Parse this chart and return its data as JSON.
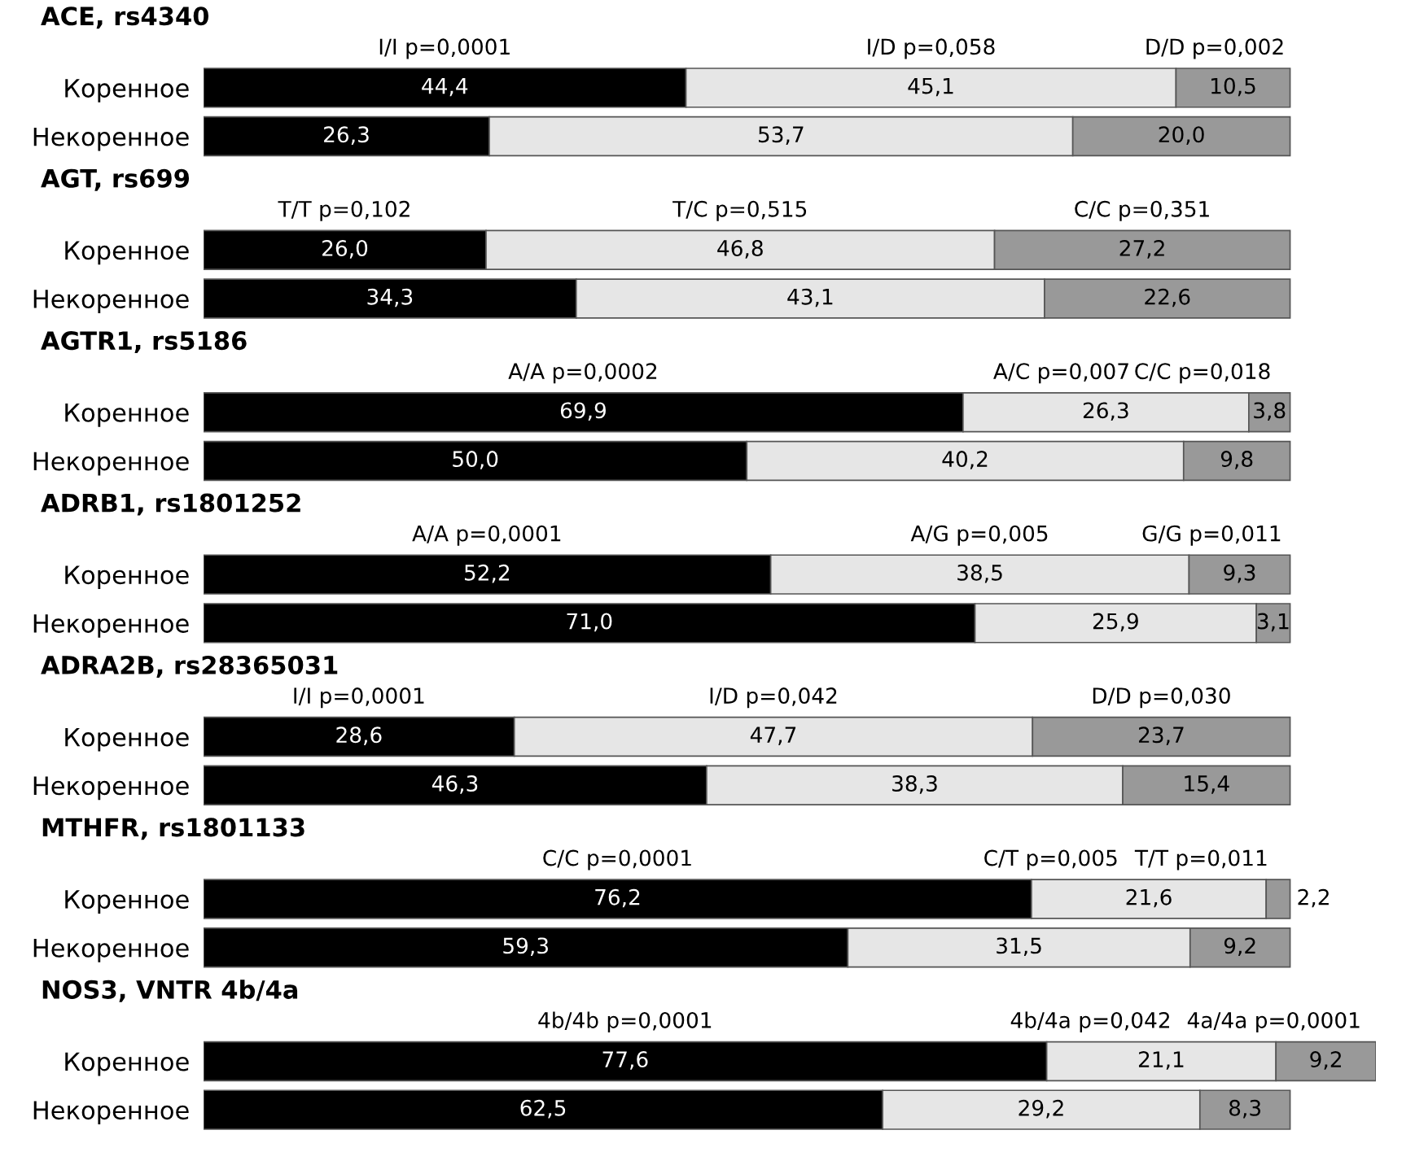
{
  "chart_data": [
    {
      "type": "bar",
      "orientation": "horizontal",
      "stacked": true,
      "title": "ACE, rs4340",
      "categories": [
        "Коренное",
        "Некоренное"
      ],
      "tick_labels": "y",
      "series": [
        {
          "name": "I/I p=0,0001",
          "color": "#000000",
          "values": [
            44.4,
            26.3
          ],
          "value_labels": [
            "44,4",
            "26,3"
          ]
        },
        {
          "name": "I/D p=0,058",
          "color": "#e6e6e6",
          "values": [
            45.1,
            53.7
          ],
          "value_labels": [
            "45,1",
            "53,7"
          ]
        },
        {
          "name": "D/D p=0,002",
          "color": "#999999",
          "values": [
            10.5,
            20.0
          ],
          "value_labels": [
            "10,5",
            "20,0"
          ]
        }
      ]
    },
    {
      "type": "bar",
      "orientation": "horizontal",
      "stacked": true,
      "title": "AGT, rs699",
      "categories": [
        "Коренное",
        "Некоренное"
      ],
      "tick_labels": "y",
      "series": [
        {
          "name": "T/T p=0,102",
          "color": "#000000",
          "values": [
            26.0,
            34.3
          ],
          "value_labels": [
            "26,0",
            "34,3"
          ]
        },
        {
          "name": "T/C p=0,515",
          "color": "#e6e6e6",
          "values": [
            46.8,
            43.1
          ],
          "value_labels": [
            "46,8",
            "43,1"
          ]
        },
        {
          "name": "C/C p=0,351",
          "color": "#999999",
          "values": [
            27.2,
            22.6
          ],
          "value_labels": [
            "27,2",
            "22,6"
          ]
        }
      ]
    },
    {
      "type": "bar",
      "orientation": "horizontal",
      "stacked": true,
      "title": "AGTR1, rs5186",
      "categories": [
        "Коренное",
        "Некоренное"
      ],
      "tick_labels": "y",
      "series": [
        {
          "name": "A/A p=0,0002",
          "color": "#000000",
          "values": [
            69.9,
            50.0
          ],
          "value_labels": [
            "69,9",
            "50,0"
          ]
        },
        {
          "name": "A/C p=0,007",
          "color": "#e6e6e6",
          "values": [
            26.3,
            40.2
          ],
          "value_labels": [
            "26,3",
            "40,2"
          ]
        },
        {
          "name": "C/C p=0,018",
          "color": "#999999",
          "values": [
            3.8,
            9.8
          ],
          "value_labels": [
            "3,8",
            "9,8"
          ]
        }
      ]
    },
    {
      "type": "bar",
      "orientation": "horizontal",
      "stacked": true,
      "title": "ADRB1, rs1801252",
      "categories": [
        "Коренное",
        "Некоренное"
      ],
      "tick_labels": "y",
      "series": [
        {
          "name": "A/A p=0,0001",
          "color": "#000000",
          "values": [
            52.2,
            71.0
          ],
          "value_labels": [
            "52,2",
            "71,0"
          ]
        },
        {
          "name": "A/G p=0,005",
          "color": "#e6e6e6",
          "values": [
            38.5,
            25.9
          ],
          "value_labels": [
            "38,5",
            "25,9"
          ]
        },
        {
          "name": "G/G p=0,011",
          "color": "#999999",
          "values": [
            9.3,
            3.1
          ],
          "value_labels": [
            "9,3",
            "3,1"
          ]
        }
      ]
    },
    {
      "type": "bar",
      "orientation": "horizontal",
      "stacked": true,
      "title": "ADRA2B, rs28365031",
      "categories": [
        "Коренное",
        "Некоренное"
      ],
      "tick_labels": "y",
      "series": [
        {
          "name": "I/I p=0,0001",
          "color": "#000000",
          "values": [
            28.6,
            46.3
          ],
          "value_labels": [
            "28,6",
            "46,3"
          ]
        },
        {
          "name": "I/D p=0,042",
          "color": "#e6e6e6",
          "values": [
            47.7,
            38.3
          ],
          "value_labels": [
            "47,7",
            "38,3"
          ]
        },
        {
          "name": "D/D p=0,030",
          "color": "#999999",
          "values": [
            23.7,
            15.4
          ],
          "value_labels": [
            "23,7",
            "15,4"
          ]
        }
      ]
    },
    {
      "type": "bar",
      "orientation": "horizontal",
      "stacked": true,
      "title": "MTHFR, rs1801133",
      "categories": [
        "Коренное",
        "Некоренное"
      ],
      "tick_labels": "y",
      "series": [
        {
          "name": "C/C p=0,0001",
          "color": "#000000",
          "values": [
            76.2,
            59.3
          ],
          "value_labels": [
            "76,2",
            "59,3"
          ]
        },
        {
          "name": "C/T p=0,005",
          "color": "#e6e6e6",
          "values": [
            21.6,
            31.5
          ],
          "value_labels": [
            "21,6",
            "31,5"
          ]
        },
        {
          "name": "T/T p=0,011",
          "color": "#999999",
          "values": [
            2.2,
            9.2
          ],
          "value_labels": [
            "2,2",
            "9,2"
          ]
        }
      ]
    },
    {
      "type": "bar",
      "orientation": "horizontal",
      "stacked": true,
      "title": "NOS3, VNTR 4b/4a",
      "categories": [
        "Коренное",
        "Некоренное"
      ],
      "tick_labels": "y",
      "series": [
        {
          "name": "4b/4b p=0,0001",
          "color": "#000000",
          "values": [
            77.6,
            62.5
          ],
          "value_labels": [
            "77,6",
            "62,5"
          ]
        },
        {
          "name": "4b/4a p=0,042",
          "color": "#e6e6e6",
          "values": [
            21.1,
            29.2
          ],
          "value_labels": [
            "21,1",
            "29,2"
          ]
        },
        {
          "name": "4a/4a p=0,0001",
          "color": "#999999",
          "values": [
            9.2,
            8.3
          ],
          "value_labels": [
            "9,2",
            "8,3"
          ]
        }
      ]
    }
  ]
}
